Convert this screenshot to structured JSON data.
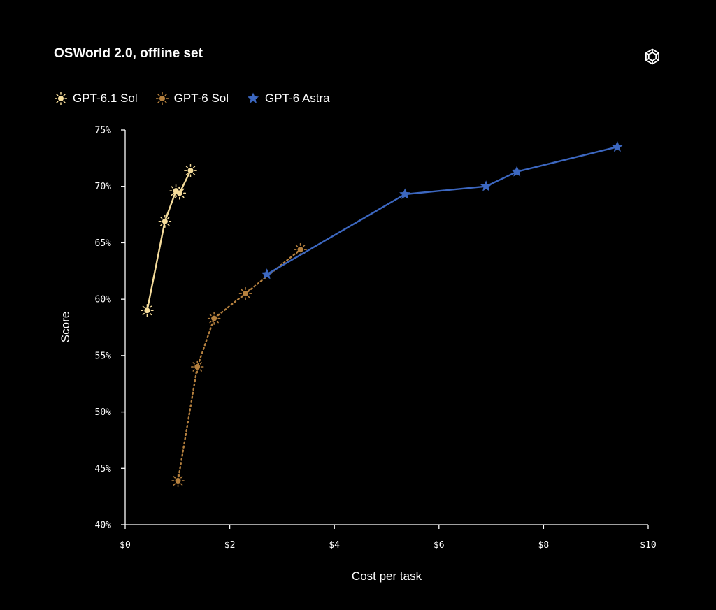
{
  "colors": {
    "background": "#000000",
    "axis": "#ffffff",
    "gpt61_sol": "#f5dc9b",
    "gpt6_sol": "#b5803e",
    "gpt6_astra": "#3c67c0"
  },
  "logo_icon": "openai-logo-icon",
  "chart_data": {
    "type": "line",
    "title": "OSWorld 2.0, offline set",
    "xlabel": "Cost per task",
    "ylabel": "Score",
    "xlim": [
      0,
      10
    ],
    "ylim": [
      40,
      75
    ],
    "x_ticks": [
      0,
      2,
      4,
      6,
      8,
      10
    ],
    "x_tick_labels": [
      "$0",
      "$2",
      "$4",
      "$6",
      "$8",
      "$10"
    ],
    "y_ticks": [
      40,
      45,
      50,
      55,
      60,
      65,
      70,
      75
    ],
    "y_tick_labels": [
      "40%",
      "45%",
      "50%",
      "55%",
      "60%",
      "65%",
      "70%",
      "75%"
    ],
    "grid": false,
    "legend_position": "top-left",
    "series": [
      {
        "name": "GPT-6.1 Sol",
        "color": "#f5dc9b",
        "marker": "sun",
        "line": "solid",
        "x": [
          0.42,
          0.76,
          0.97,
          1.04,
          1.25
        ],
        "y": [
          59.0,
          66.9,
          69.6,
          69.4,
          71.4
        ]
      },
      {
        "name": "GPT-6 Sol",
        "color": "#b5803e",
        "marker": "sun",
        "line": "dotted",
        "x": [
          1.01,
          1.38,
          1.7,
          2.3,
          3.35
        ],
        "y": [
          43.9,
          54.0,
          58.3,
          60.5,
          64.4
        ]
      },
      {
        "name": "GPT-6 Astra",
        "color": "#3c67c0",
        "marker": "star",
        "line": "solid",
        "x": [
          2.71,
          5.35,
          6.9,
          7.49,
          9.41
        ],
        "y": [
          62.2,
          69.3,
          70.0,
          71.3,
          73.5
        ]
      }
    ]
  }
}
